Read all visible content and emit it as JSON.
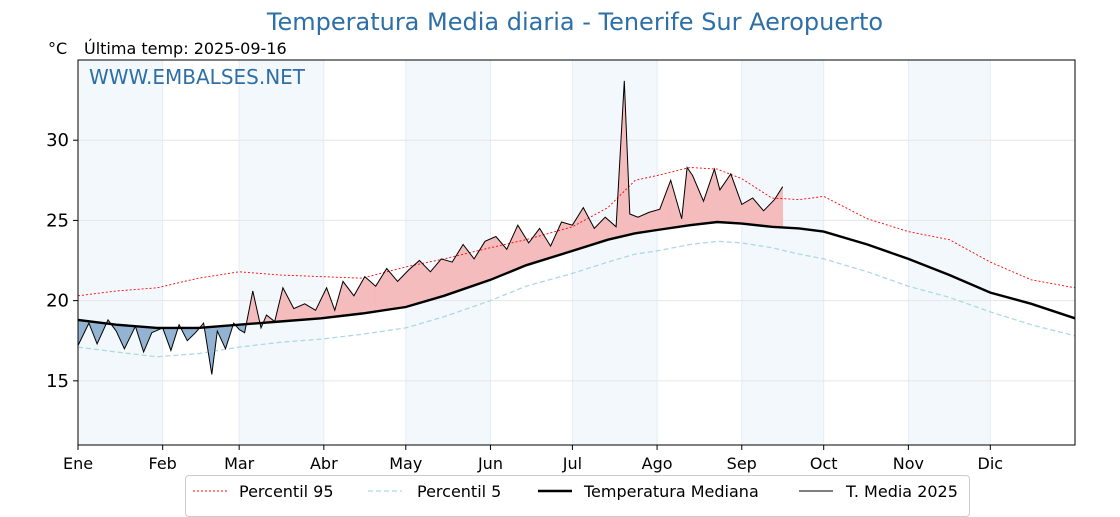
{
  "chart_data": {
    "type": "line",
    "title": "Temperatura Media diaria - Tenerife Sur Aeropuerto",
    "unit_label": "°C",
    "subtitle": "Última temp: 2025-09-16",
    "watermark": "WWW.EMBALSES.NET",
    "ylim": [
      11,
      35
    ],
    "yticks": [
      15,
      20,
      25,
      30
    ],
    "xlim": [
      1,
      366
    ],
    "months": [
      "Ene",
      "Feb",
      "Mar",
      "Abr",
      "May",
      "Jun",
      "Jul",
      "Ago",
      "Sep",
      "Oct",
      "Nov",
      "Dic"
    ],
    "month_start_days": [
      1,
      32,
      60,
      91,
      121,
      152,
      182,
      213,
      244,
      274,
      305,
      335
    ],
    "grid": true,
    "legend_position": "bottom-center",
    "series": [
      {
        "name": "Percentil 95",
        "color": "#ff0000",
        "style": "dotted",
        "x": [
          1,
          15,
          30,
          45,
          60,
          75,
          90,
          105,
          121,
          135,
          152,
          165,
          182,
          195,
          205,
          213,
          225,
          235,
          244,
          255,
          265,
          274,
          290,
          305,
          320,
          335,
          350,
          366
        ],
        "y": [
          20.3,
          20.6,
          20.8,
          21.4,
          21.8,
          21.6,
          21.5,
          21.4,
          22.1,
          22.6,
          23.3,
          23.8,
          24.6,
          25.8,
          27.5,
          27.8,
          28.3,
          28.2,
          27.6,
          26.4,
          26.3,
          26.5,
          25.1,
          24.3,
          23.8,
          22.4,
          21.3,
          20.8
        ]
      },
      {
        "name": "Percentil 5",
        "color": "#add8e6",
        "style": "dashed",
        "x": [
          1,
          15,
          30,
          45,
          60,
          75,
          90,
          105,
          121,
          135,
          152,
          165,
          182,
          195,
          205,
          213,
          225,
          235,
          244,
          255,
          265,
          274,
          290,
          305,
          320,
          335,
          350,
          366
        ],
        "y": [
          17.1,
          16.8,
          16.5,
          16.7,
          17.1,
          17.4,
          17.6,
          17.9,
          18.3,
          19.0,
          20.0,
          20.9,
          21.7,
          22.4,
          22.9,
          23.1,
          23.5,
          23.7,
          23.6,
          23.3,
          22.9,
          22.6,
          21.8,
          20.9,
          20.2,
          19.3,
          18.5,
          17.8
        ]
      },
      {
        "name": "Temperatura Mediana",
        "color": "#000000",
        "style": "solid-thick",
        "x": [
          1,
          15,
          30,
          45,
          60,
          75,
          90,
          105,
          121,
          135,
          152,
          165,
          182,
          195,
          205,
          213,
          225,
          235,
          244,
          255,
          265,
          274,
          290,
          305,
          320,
          335,
          350,
          366
        ],
        "y": [
          18.8,
          18.5,
          18.3,
          18.3,
          18.5,
          18.7,
          18.9,
          19.2,
          19.6,
          20.3,
          21.3,
          22.2,
          23.1,
          23.8,
          24.2,
          24.4,
          24.7,
          24.9,
          24.8,
          24.6,
          24.5,
          24.3,
          23.5,
          22.6,
          21.6,
          20.5,
          19.8,
          18.9
        ]
      },
      {
        "name": "T. Media 2025",
        "color": "#000000",
        "style": "solid-thin",
        "x": [
          1,
          5,
          8,
          12,
          15,
          18,
          22,
          25,
          28,
          32,
          35,
          38,
          41,
          44,
          47,
          50,
          52,
          55,
          58,
          60,
          62,
          65,
          68,
          70,
          73,
          76,
          80,
          84,
          88,
          92,
          95,
          98,
          102,
          106,
          110,
          114,
          118,
          122,
          126,
          130,
          134,
          138,
          142,
          146,
          150,
          154,
          158,
          162,
          166,
          170,
          174,
          178,
          182,
          186,
          190,
          194,
          198,
          201,
          203,
          206,
          210,
          214,
          218,
          222,
          224,
          226,
          230,
          234,
          236,
          240,
          244,
          248,
          252,
          256,
          259
        ],
        "y": [
          17.2,
          18.6,
          17.3,
          18.8,
          18.1,
          17.0,
          18.4,
          16.8,
          18.0,
          18.3,
          16.9,
          18.5,
          17.5,
          18.0,
          18.6,
          15.4,
          18.1,
          17.0,
          18.6,
          18.2,
          18.0,
          20.6,
          18.3,
          19.1,
          18.7,
          20.8,
          19.5,
          19.8,
          19.4,
          20.8,
          19.4,
          21.2,
          20.3,
          21.5,
          20.9,
          22.0,
          21.2,
          21.9,
          22.5,
          21.8,
          22.6,
          22.4,
          23.5,
          22.6,
          23.7,
          24.0,
          23.2,
          24.7,
          23.6,
          24.5,
          23.4,
          24.9,
          24.7,
          25.8,
          24.5,
          25.2,
          24.6,
          33.7,
          25.4,
          25.2,
          25.5,
          25.7,
          27.5,
          25.1,
          28.3,
          27.8,
          26.2,
          28.2,
          26.9,
          27.9,
          26.0,
          26.4,
          25.6,
          26.3,
          27.1
        ]
      }
    ]
  }
}
